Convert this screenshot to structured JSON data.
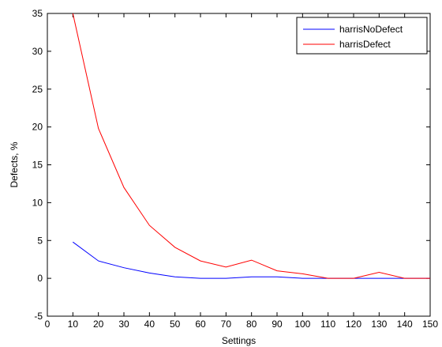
{
  "chart_data": {
    "type": "line",
    "xlabel": "Settings",
    "ylabel": "Defects, %",
    "xlim": [
      0,
      150
    ],
    "ylim": [
      -5,
      35
    ],
    "xticks": [
      0,
      10,
      20,
      30,
      40,
      50,
      60,
      70,
      80,
      90,
      100,
      110,
      120,
      130,
      140,
      150
    ],
    "yticks": [
      -5,
      0,
      5,
      10,
      15,
      20,
      25,
      30,
      35
    ],
    "grid": false,
    "legend_position": "top-right",
    "series": [
      {
        "name": "harrisNoDefect",
        "color": "#0000ff",
        "x": [
          10,
          20,
          30,
          40,
          50,
          60,
          70,
          80,
          90,
          100,
          110,
          120,
          130,
          140,
          150
        ],
        "y": [
          4.8,
          2.3,
          1.4,
          0.7,
          0.2,
          0.0,
          0.0,
          0.2,
          0.2,
          0.0,
          0.0,
          0.0,
          0.0,
          0.0,
          0.0
        ]
      },
      {
        "name": "harrisDefect",
        "color": "#ff0000",
        "x": [
          10,
          20,
          30,
          40,
          50,
          60,
          70,
          80,
          90,
          100,
          110,
          120,
          130,
          140,
          150
        ],
        "y": [
          35.0,
          19.8,
          12.0,
          7.0,
          4.1,
          2.3,
          1.5,
          2.4,
          1.0,
          0.6,
          0.0,
          0.0,
          0.8,
          0.0,
          0.0
        ]
      }
    ]
  }
}
